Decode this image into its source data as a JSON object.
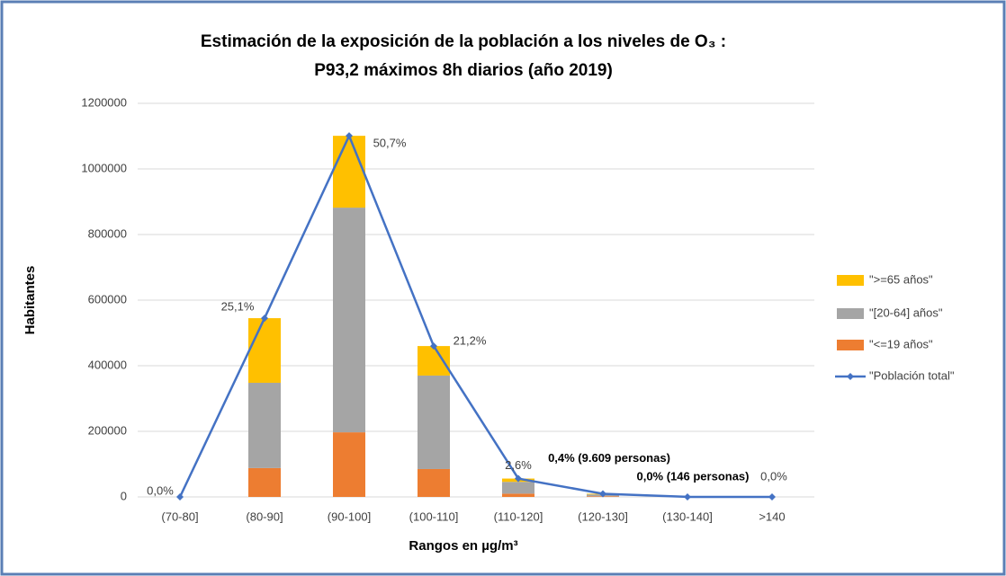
{
  "chart_data": {
    "type": "stacked_bar_line",
    "title": [
      "Estimación de la exposición de la población a los niveles de O₃ :",
      "P93,2 máximos 8h diarios (año 2019)"
    ],
    "ylabel": "Habitantes",
    "xlabel": "Rangos en µg/m³",
    "categories": [
      "(70-80]",
      "(80-90]",
      "(90-100]",
      "(100-110]",
      "(110-120]",
      "(120-130]",
      "(130-140]",
      ">140"
    ],
    "series": [
      {
        "name": "\"<=19 años\"",
        "color": "#ed7d31",
        "kind": "bar",
        "values": [
          0,
          88000,
          197000,
          85000,
          10000,
          2000,
          30,
          0
        ]
      },
      {
        "name": "\"[20-64] años\"",
        "color": "#a5a5a5",
        "kind": "bar",
        "values": [
          0,
          260000,
          685000,
          285000,
          36000,
          5600,
          90,
          0
        ]
      },
      {
        "name": "\">=65 años\"",
        "color": "#ffc000",
        "kind": "bar",
        "values": [
          0,
          197000,
          219000,
          90000,
          10000,
          2009,
          26,
          0
        ]
      },
      {
        "name": "\"Población total\"",
        "color": "#4472c4",
        "kind": "line",
        "values": [
          0,
          545000,
          1101000,
          460000,
          56000,
          9609,
          146,
          0
        ],
        "point_labels": [
          "0,0%",
          "25,1%",
          "50,7%",
          "21,2%",
          "2,6%",
          "0,4% (9.609 personas)",
          "0,0% (146 personas)",
          "0,0%"
        ]
      }
    ],
    "ylim": [
      0,
      1200000
    ],
    "yticks": [
      0,
      200000,
      400000,
      600000,
      800000,
      1000000,
      1200000
    ],
    "grid": true,
    "legend": "right"
  }
}
